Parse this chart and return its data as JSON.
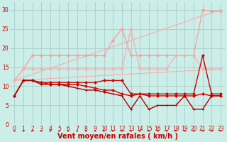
{
  "background_color": "#cceee8",
  "grid_color": "#aacccc",
  "xlabel": "Vent moyen/en rafales ( km/h )",
  "xlim": [
    -0.5,
    23.5
  ],
  "ylim": [
    0,
    32
  ],
  "yticks": [
    0,
    5,
    10,
    15,
    20,
    25,
    30
  ],
  "xticks": [
    0,
    1,
    2,
    3,
    4,
    5,
    6,
    7,
    8,
    9,
    10,
    11,
    12,
    13,
    14,
    15,
    16,
    17,
    18,
    19,
    20,
    21,
    22,
    23
  ],
  "series": [
    {
      "name": "trend_upper",
      "x": [
        0,
        23
      ],
      "y": [
        11.5,
        30
      ],
      "color": "#ffaaaa",
      "linewidth": 0.8,
      "marker": null,
      "markersize": 0
    },
    {
      "name": "trend_lower",
      "x": [
        0,
        23
      ],
      "y": [
        11.5,
        14.5
      ],
      "color": "#ffaaaa",
      "linewidth": 0.8,
      "marker": null,
      "markersize": 0
    },
    {
      "name": "light_upper",
      "x": [
        0,
        1,
        2,
        3,
        4,
        5,
        6,
        7,
        8,
        9,
        10,
        11,
        12,
        13,
        14,
        15,
        16,
        17,
        18,
        19,
        20,
        21,
        22,
        23
      ],
      "y": [
        11.5,
        14.5,
        18,
        18,
        18,
        18,
        18,
        18,
        18,
        18,
        18,
        22,
        25,
        18,
        18,
        18,
        18,
        18,
        18,
        18,
        18,
        30,
        29.5,
        29.5
      ],
      "color": "#ff9999",
      "linewidth": 0.9,
      "marker": "D",
      "markersize": 2.0
    },
    {
      "name": "light_lower",
      "x": [
        0,
        1,
        2,
        3,
        4,
        5,
        6,
        7,
        8,
        9,
        10,
        11,
        12,
        13,
        14,
        15,
        16,
        17,
        18,
        19,
        20,
        21,
        22,
        23
      ],
      "y": [
        11.5,
        14.5,
        14.5,
        14.5,
        14.5,
        14.5,
        14.5,
        14.5,
        14.5,
        14.5,
        14.5,
        14.5,
        14.5,
        25,
        14.5,
        14.5,
        14.5,
        14.5,
        18,
        18,
        18,
        14.5,
        14.5,
        14.5
      ],
      "color": "#ffaaaa",
      "linewidth": 0.9,
      "marker": "D",
      "markersize": 2.0
    },
    {
      "name": "dark_main",
      "x": [
        0,
        1,
        2,
        3,
        4,
        5,
        6,
        7,
        8,
        9,
        10,
        11,
        12,
        13,
        14,
        15,
        16,
        17,
        18,
        19,
        20,
        21,
        22,
        23
      ],
      "y": [
        7.5,
        11.5,
        11.5,
        11,
        11,
        11,
        11,
        11,
        11,
        11,
        11.5,
        11.5,
        11.5,
        8,
        8,
        8,
        8,
        8,
        8,
        8,
        8,
        18,
        8,
        8
      ],
      "color": "#cc0000",
      "linewidth": 1.0,
      "marker": "D",
      "markersize": 2.0
    },
    {
      "name": "dark_lower1",
      "x": [
        0,
        1,
        2,
        3,
        4,
        5,
        6,
        7,
        8,
        9,
        10,
        11,
        12,
        13,
        14,
        15,
        16,
        17,
        18,
        19,
        20,
        21,
        22,
        23
      ],
      "y": [
        7.5,
        11.5,
        11.5,
        11,
        10.5,
        10.5,
        10.5,
        10.5,
        10,
        9.5,
        9,
        9,
        8,
        7.5,
        8,
        7.5,
        7.5,
        7.5,
        7.5,
        7.5,
        7.5,
        8,
        7.5,
        7.5
      ],
      "color": "#dd0000",
      "linewidth": 1.0,
      "marker": "D",
      "markersize": 2.0
    },
    {
      "name": "dark_lower2",
      "x": [
        0,
        1,
        2,
        3,
        4,
        5,
        6,
        7,
        8,
        9,
        10,
        11,
        12,
        13,
        14,
        15,
        16,
        17,
        18,
        19,
        20,
        21,
        22,
        23
      ],
      "y": [
        7.5,
        11.5,
        11.5,
        10.5,
        10.5,
        10.5,
        10,
        9.5,
        9,
        9,
        8.5,
        8,
        7.5,
        4,
        7.5,
        4,
        5,
        5,
        5,
        7.5,
        4,
        4,
        7.5,
        7.5
      ],
      "color": "#aa0000",
      "linewidth": 1.0,
      "marker": "+",
      "markersize": 3.5
    }
  ],
  "arrow_color": "#cc0000",
  "xlabel_color": "#cc0000",
  "xlabel_fontsize": 7,
  "tick_fontsize": 5.5,
  "tick_color": "#cc0000"
}
